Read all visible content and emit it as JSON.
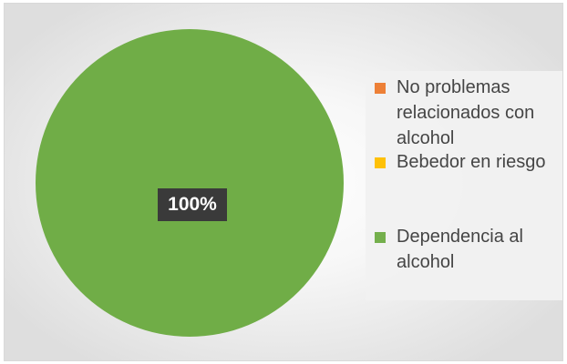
{
  "chart_data": {
    "type": "pie",
    "categories": [
      "No problemas relacionados con alcohol",
      "Bebedor en riesgo",
      "Dependencia al alcohol"
    ],
    "values": [
      0,
      0,
      100
    ],
    "colors": [
      "#ed7d31",
      "#ffc000",
      "#70ad47"
    ],
    "data_labels": [
      "",
      "",
      "100%"
    ],
    "legend_position": "right"
  }
}
